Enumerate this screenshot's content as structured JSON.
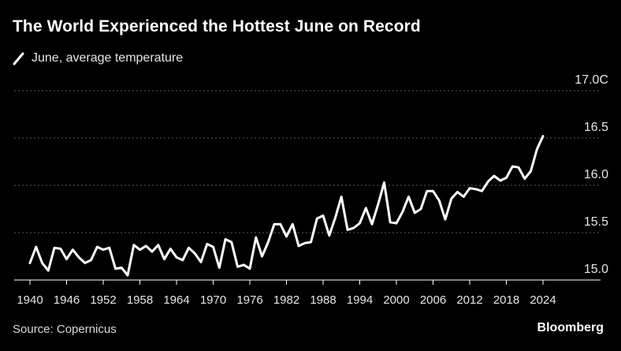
{
  "header": {
    "title": "The World Experienced the Hottest June on Record",
    "legend_label": "June, average temperature"
  },
  "footer": {
    "source": "Source: Copernicus",
    "brand": "Bloomberg"
  },
  "colors": {
    "background": "#000000",
    "line": "#ffffff",
    "grid": "#5a5a5a",
    "text": "#ffffff"
  },
  "chart_data": {
    "type": "line",
    "title": "The World Experienced the Hottest June on Record",
    "xlabel": "",
    "ylabel": "",
    "xlim": [
      1940,
      2024
    ],
    "ylim": [
      15.0,
      17.0
    ],
    "x_ticks": [
      "1940",
      "1946",
      "1952",
      "1958",
      "1964",
      "1970",
      "1976",
      "1982",
      "1988",
      "1994",
      "2000",
      "2006",
      "2012",
      "2018",
      "2024"
    ],
    "y_ticks": [
      {
        "value": 15.0,
        "label": "15.0"
      },
      {
        "value": 15.5,
        "label": "15.5"
      },
      {
        "value": 16.0,
        "label": "16.0"
      },
      {
        "value": 16.5,
        "label": "16.5"
      },
      {
        "value": 17.0,
        "label": "17.0C"
      }
    ],
    "grid": true,
    "legend": "top-left",
    "series": [
      {
        "name": "June, average temperature",
        "x": [
          1940,
          1941,
          1942,
          1943,
          1944,
          1945,
          1946,
          1947,
          1948,
          1949,
          1950,
          1951,
          1952,
          1953,
          1954,
          1955,
          1956,
          1957,
          1958,
          1959,
          1960,
          1961,
          1962,
          1963,
          1964,
          1965,
          1966,
          1967,
          1968,
          1969,
          1970,
          1971,
          1972,
          1973,
          1974,
          1975,
          1976,
          1977,
          1978,
          1979,
          1980,
          1981,
          1982,
          1983,
          1984,
          1985,
          1986,
          1987,
          1988,
          1989,
          1990,
          1991,
          1992,
          1993,
          1994,
          1995,
          1996,
          1997,
          1998,
          1999,
          2000,
          2001,
          2002,
          2003,
          2004,
          2005,
          2006,
          2007,
          2008,
          2009,
          2010,
          2011,
          2012,
          2013,
          2014,
          2015,
          2016,
          2017,
          2018,
          2019,
          2020,
          2021,
          2022,
          2023,
          2024
        ],
        "values": [
          15.18,
          15.35,
          15.18,
          15.1,
          15.34,
          15.33,
          15.22,
          15.32,
          15.24,
          15.18,
          15.21,
          15.35,
          15.32,
          15.34,
          15.12,
          15.13,
          15.05,
          15.37,
          15.32,
          15.36,
          15.3,
          15.37,
          15.22,
          15.33,
          15.24,
          15.21,
          15.34,
          15.28,
          15.19,
          15.38,
          15.35,
          15.13,
          15.43,
          15.4,
          15.14,
          15.16,
          15.12,
          15.45,
          15.25,
          15.4,
          15.59,
          15.59,
          15.46,
          15.59,
          15.36,
          15.39,
          15.4,
          15.65,
          15.68,
          15.47,
          15.66,
          15.88,
          15.53,
          15.55,
          15.6,
          15.76,
          15.59,
          15.8,
          16.03,
          15.61,
          15.6,
          15.72,
          15.88,
          15.71,
          15.75,
          15.94,
          15.94,
          15.84,
          15.64,
          15.86,
          15.93,
          15.88,
          15.97,
          15.96,
          15.94,
          16.04,
          16.1,
          16.05,
          16.08,
          16.2,
          16.19,
          16.07,
          16.15,
          16.38,
          16.52
        ]
      }
    ]
  }
}
